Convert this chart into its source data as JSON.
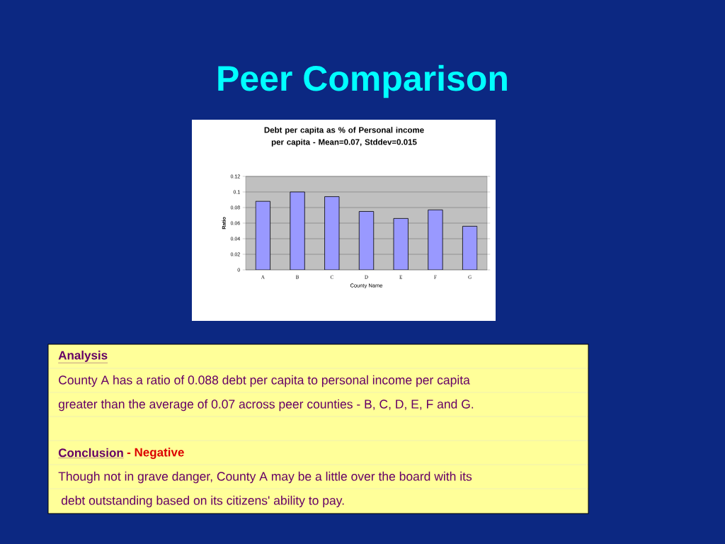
{
  "chart_data": {
    "type": "bar",
    "title": "Peer Comparison",
    "subtitle": "Debt per capita as % of Personal income per capita - Mean=0.07, Stddev=0.015",
    "xlabel": "County Name",
    "ylabel": "Ratio",
    "categories": [
      "A",
      "B",
      "C",
      "D",
      "E",
      "F",
      "G"
    ],
    "values": [
      0.088,
      0.1,
      0.094,
      0.075,
      0.066,
      0.077,
      0.056
    ],
    "color": "#9999ff",
    "ylim": [
      0,
      0.12
    ],
    "yticks": [
      0,
      0.02,
      0.04,
      0.06,
      0.08,
      0.1,
      0.12
    ],
    "grid": "y",
    "annotations": [
      "Analysis",
      "County A has a ratio of 0.088 debt per capita to personal income per capita",
      "greater than the average of 0.07 across peer counties - B, C, D, E, F and G.",
      "Conclusion",
      "- Negative",
      "Though not in grave danger, County A may be a little over the board with its",
      "debt outstanding based on its citizens' ability to pay."
    ]
  }
}
